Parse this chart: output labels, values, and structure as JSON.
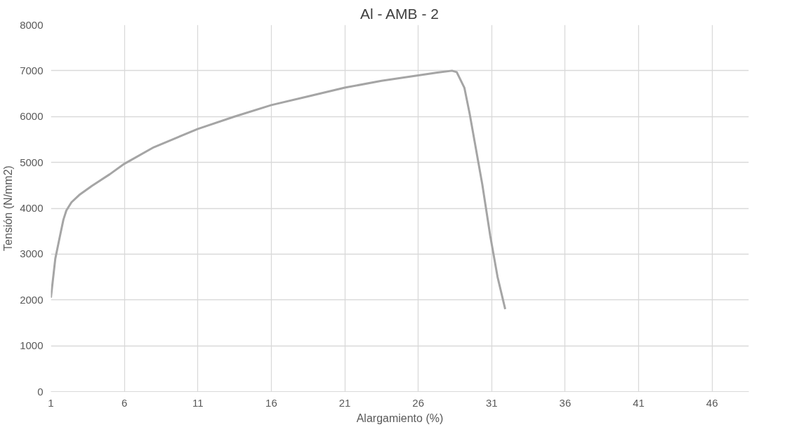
{
  "chart_data": {
    "type": "line",
    "title": "Al - AMB - 2",
    "xlabel": "Alargamiento (%)",
    "ylabel": "Tensión (N/mm2)",
    "xlim": [
      1,
      48.5
    ],
    "xticks": [
      1,
      6,
      11,
      16,
      21,
      26,
      31,
      36,
      41,
      46
    ],
    "ylim": [
      0,
      8000
    ],
    "yticks": [
      0,
      1000,
      2000,
      3000,
      4000,
      5000,
      6000,
      7000,
      8000
    ],
    "grid": true,
    "marker": "none",
    "line_style": "solid",
    "series": [
      {
        "color": "#a5a5a5",
        "x": [
          1,
          1.3,
          1.62,
          1.85,
          2.05,
          2.4,
          2.93,
          3.8,
          5,
          6,
          8,
          11,
          13.5,
          16,
          18.5,
          21,
          23.5,
          26,
          27.3,
          28.3,
          28.62,
          29.14,
          29.49,
          30.36,
          30.9,
          31.4,
          31.92
        ],
        "values": [
          2050,
          2900,
          3400,
          3750,
          3950,
          4130,
          4290,
          4490,
          4740,
          4970,
          5330,
          5730,
          6000,
          6250,
          6440,
          6630,
          6780,
          6900,
          6960,
          7000,
          6970,
          6630,
          6080,
          4520,
          3400,
          2500,
          1800
        ]
      }
    ]
  }
}
